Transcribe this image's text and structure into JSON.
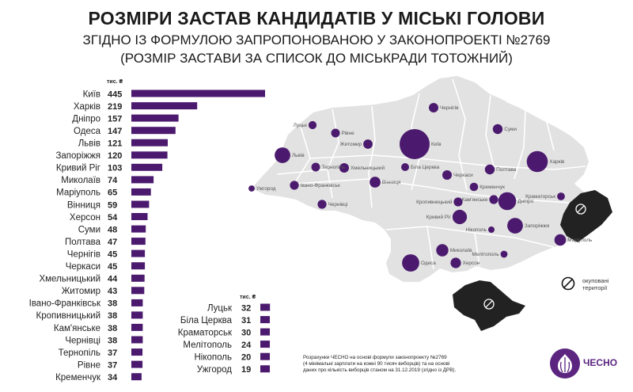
{
  "header": {
    "title": "РОЗМІРИ ЗАСТАВ КАНДИДАТІВ У МІСЬКІ ГОЛОВИ",
    "subtitle_line1": "ЗГІДНО ІЗ ФОРМУЛОЮ ЗАПРОПОНОВАНОЮ У ЗАКОНОПРОЕКТІ №2769",
    "subtitle_line2": "(РОЗМІР ЗАСТАВИ ЗА СПИСОК ДО МІСЬКРАДИ ТОТОЖНИЙ)"
  },
  "chart_data": {
    "type": "bar",
    "orientation": "horizontal",
    "unit": "тис. ₴",
    "bar_color": "#4b1a6e",
    "categories": [
      "Київ",
      "Харків",
      "Дніпро",
      "Одеса",
      "Львів",
      "Запоріжжя",
      "Кривий Ріг",
      "Миколаїв",
      "Маріуполь",
      "Вінниця",
      "Херсон",
      "Суми",
      "Полтава",
      "Чернігів",
      "Черкаси",
      "Хмельницький",
      "Житомир",
      "Івано-Франківськ",
      "Кропивницький",
      "Кам'янське",
      "Чернівці",
      "Тернопіль",
      "Рівне",
      "Кременчук",
      "Луцьк",
      "Біла Церква",
      "Краматорськ",
      "Мелітополь",
      "Нікополь",
      "Ужгород"
    ],
    "values": [
      445,
      219,
      157,
      147,
      121,
      120,
      103,
      74,
      65,
      59,
      54,
      48,
      47,
      45,
      45,
      44,
      43,
      38,
      38,
      38,
      38,
      37,
      37,
      34,
      32,
      31,
      30,
      24,
      20,
      19
    ],
    "value_labels": [
      "445",
      "219",
      "157",
      "147",
      "121",
      "120",
      "103",
      "74",
      "65",
      "59",
      "54",
      "48",
      "47",
      "45",
      "45",
      "44",
      "43",
      "38",
      "38",
      "38",
      "38",
      "37",
      "37",
      "34",
      "32",
      "31",
      "30",
      "24",
      "20",
      "19"
    ]
  },
  "map": {
    "land_color": "#e2e2e2",
    "border_color": "#ffffff",
    "occupied_color": "#222222",
    "bubble_color": "#4b1a6e",
    "cities": [
      {
        "name": "Київ",
        "value": 445
      },
      {
        "name": "Харків",
        "value": 219
      },
      {
        "name": "Дніпро",
        "value": 157
      },
      {
        "name": "Одеса",
        "value": 147
      },
      {
        "name": "Львів",
        "value": 121
      },
      {
        "name": "Запоріжжя",
        "value": 120
      },
      {
        "name": "Кривий Ріг",
        "value": 103
      },
      {
        "name": "Миколаїв",
        "value": 74
      },
      {
        "name": "Маріуполь",
        "value": 65
      },
      {
        "name": "Вінниця",
        "value": 59
      },
      {
        "name": "Херсон",
        "value": 54
      },
      {
        "name": "Суми",
        "value": 48
      },
      {
        "name": "Полтава",
        "value": 47
      },
      {
        "name": "Чернігів",
        "value": 45
      },
      {
        "name": "Черкаси",
        "value": 45
      },
      {
        "name": "Хмельницький",
        "value": 44
      },
      {
        "name": "Житомир",
        "value": 43
      },
      {
        "name": "Івано-Франківськ",
        "value": 38
      },
      {
        "name": "Кропивницький",
        "value": 38
      },
      {
        "name": "Кам'янське",
        "value": 38
      },
      {
        "name": "Чернівці",
        "value": 38
      },
      {
        "name": "Тернопіль",
        "value": 37
      },
      {
        "name": "Рівне",
        "value": 37
      },
      {
        "name": "Кременчук",
        "value": 34
      },
      {
        "name": "Луцьк",
        "value": 32
      },
      {
        "name": "Біла Церква",
        "value": 31
      },
      {
        "name": "Краматорськ",
        "value": 30
      },
      {
        "name": "Мелітополь",
        "value": 24
      },
      {
        "name": "Нікополь",
        "value": 20
      },
      {
        "name": "Ужгород",
        "value": 19
      }
    ]
  },
  "legend": {
    "occupied_line1": "окуповані",
    "occupied_line2": "території"
  },
  "footnote": {
    "line1": "Розрахунки ЧЕСНО на основі формули законопроекту №2769",
    "line2": "(4 мінімальні зарплати на кожні 90 тисяч виборців) та на основі",
    "line3": "даних про кількість виборців станом на 31.12.2019 (згідно із ДРВ)."
  },
  "logo": {
    "text": "ЧЕСНО",
    "color": "#5b2580"
  }
}
